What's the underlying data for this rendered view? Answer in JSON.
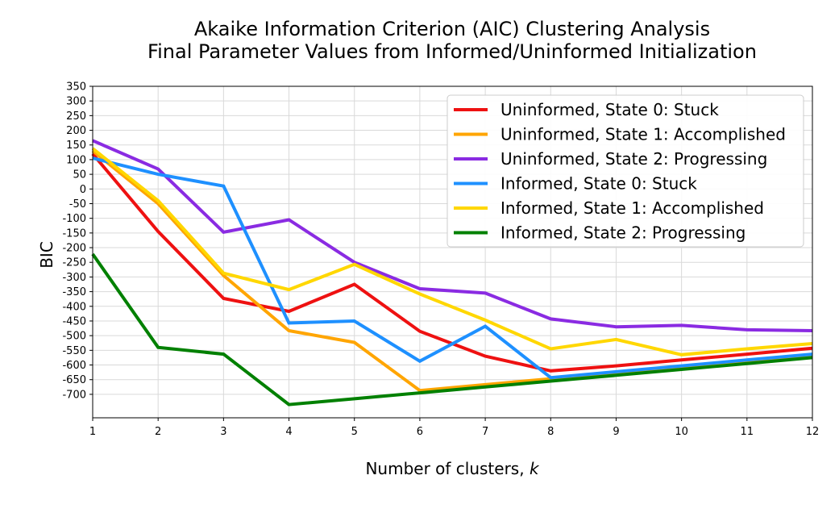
{
  "chart_data": {
    "type": "line",
    "title": [
      "Akaike Information Criterion (AIC) Clustering Analysis",
      "Final Parameter Values from Informed/Uninformed Initialization"
    ],
    "xlabel_prefix": "Number of clusters, ",
    "xlabel_var": "k",
    "ylabel": "BIC",
    "xlim": [
      1,
      12
    ],
    "ylim": [
      -780,
      350
    ],
    "x_ticks": [
      1,
      2,
      3,
      4,
      5,
      6,
      7,
      8,
      9,
      10,
      11,
      12
    ],
    "y_ticks": [
      350,
      300,
      250,
      200,
      150,
      100,
      50,
      0,
      -50,
      -100,
      -150,
      -200,
      -250,
      -300,
      -350,
      -400,
      -450,
      -500,
      -550,
      -600,
      -650,
      -700
    ],
    "grid": true,
    "legend_position": "top-right",
    "x": [
      1,
      2,
      3,
      4,
      5,
      6,
      7,
      8,
      9,
      10,
      11,
      12
    ],
    "series": [
      {
        "name": "Uninformed, State 0: Stuck",
        "color": "#ee1111",
        "values": [
          120,
          -145,
          -373,
          -417,
          -325,
          -485,
          -570,
          -620,
          -603,
          -583,
          -563,
          -543
        ]
      },
      {
        "name": "Uninformed, State 1: Accomplished",
        "color": "#ffa500",
        "values": [
          130,
          -50,
          -295,
          -483,
          -523,
          -687,
          -667,
          -647,
          -630,
          -610,
          -590,
          -570
        ]
      },
      {
        "name": "Uninformed, State 2: Progressing",
        "color": "#8a2be2",
        "values": [
          165,
          68,
          -147,
          -105,
          -250,
          -340,
          -355,
          -443,
          -470,
          -465,
          -480,
          -483
        ]
      },
      {
        "name": "Informed, State 0: Stuck",
        "color": "#1e90ff",
        "values": [
          105,
          50,
          10,
          -457,
          -450,
          -587,
          -468,
          -643,
          -623,
          -603,
          -583,
          -563
        ]
      },
      {
        "name": "Informed, State 1: Accomplished",
        "color": "#ffd700",
        "values": [
          138,
          -40,
          -287,
          -343,
          -257,
          -358,
          -447,
          -545,
          -513,
          -565,
          -545,
          -527
        ]
      },
      {
        "name": "Informed, State 2: Progressing",
        "color": "#008000",
        "values": [
          -222,
          -540,
          -563,
          -735,
          -715,
          -695,
          -675,
          -655,
          -635,
          -615,
          -595,
          -575
        ]
      }
    ]
  }
}
